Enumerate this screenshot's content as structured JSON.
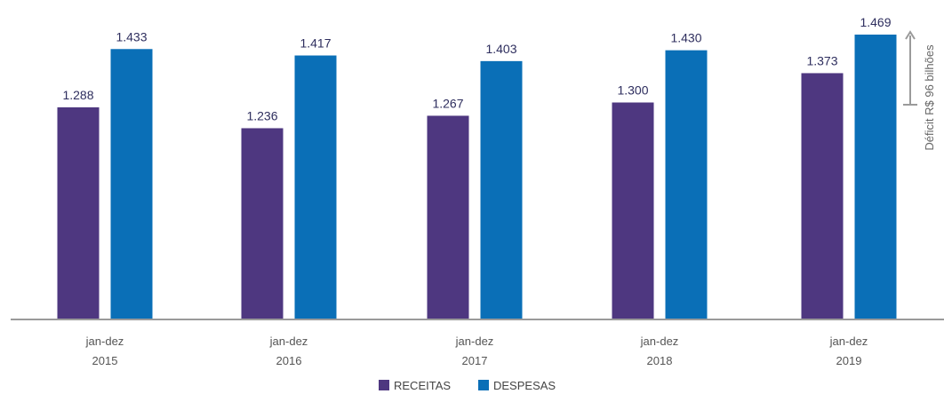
{
  "chart_data": {
    "type": "bar",
    "categories": [
      [
        "jan-dez",
        "2015"
      ],
      [
        "jan-dez",
        "2016"
      ],
      [
        "jan-dez",
        "2017"
      ],
      [
        "jan-dez",
        "2018"
      ],
      [
        "jan-dez",
        "2019"
      ]
    ],
    "series": [
      {
        "name": "RECEITAS",
        "color": "#4e3780",
        "values": [
          1288,
          1236,
          1267,
          1300,
          1373
        ],
        "labels": [
          "1.288",
          "1.236",
          "1.267",
          "1.300",
          "1.373"
        ]
      },
      {
        "name": "DESPESAS",
        "color": "#0a6fb7",
        "values": [
          1433,
          1417,
          1403,
          1430,
          1469
        ],
        "labels": [
          "1.433",
          "1.417",
          "1.403",
          "1.430",
          "1.469"
        ]
      }
    ],
    "ylim": [
      760,
      1480
    ],
    "grid": false,
    "legend_position": "bottom-center",
    "annotation": {
      "text": "Déficit R$ 96 bilhões",
      "from": 1373,
      "to": 1469
    }
  }
}
